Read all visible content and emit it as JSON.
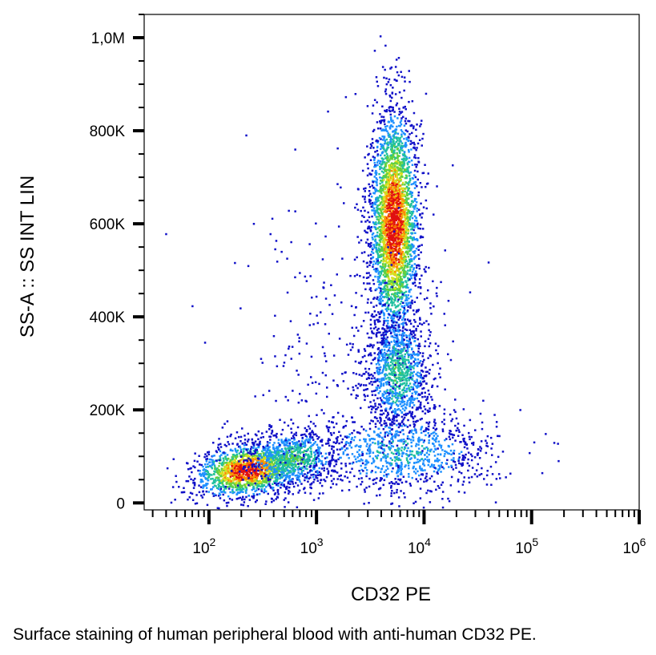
{
  "chart_data": {
    "type": "scatter",
    "subtype": "flow-cytometry density dot plot",
    "xlabel": "CD32 PE",
    "ylabel": "SS-A :: SS INT LIN",
    "x_scale": "log",
    "xlim": [
      25,
      1000000
    ],
    "ylim": [
      -15000,
      1050000
    ],
    "x_tick_labels": [
      {
        "value": 100,
        "base": "10",
        "exp": "2"
      },
      {
        "value": 1000,
        "base": "10",
        "exp": "3"
      },
      {
        "value": 10000,
        "base": "10",
        "exp": "4"
      },
      {
        "value": 100000,
        "base": "10",
        "exp": "5"
      },
      {
        "value": 1000000,
        "base": "10",
        "exp": "6"
      }
    ],
    "y_ticks": [
      {
        "value": 0,
        "label": "0"
      },
      {
        "value": 200000,
        "label": "200K"
      },
      {
        "value": 400000,
        "label": "400K"
      },
      {
        "value": 600000,
        "label": "600K"
      },
      {
        "value": 800000,
        "label": "800K"
      },
      {
        "value": 1000000,
        "label": "1,0M"
      }
    ],
    "colormap": [
      "#1010c8",
      "#1e90ff",
      "#20c0a0",
      "#60d040",
      "#d8e020",
      "#ff8c00",
      "#e01010"
    ],
    "grid": false,
    "populations": [
      {
        "x_center": 230,
        "y_center": 70000,
        "x_spread_log10": 0.24,
        "y_spread": 28000,
        "tilt_per_decade": 25000,
        "count": 1500,
        "peak_density": 1.0
      },
      {
        "x_center": 600,
        "y_center": 95000,
        "x_spread_log10": 0.22,
        "y_spread": 32000,
        "tilt_per_decade": 15000,
        "count": 700,
        "peak_density": 0.45
      },
      {
        "x_center": 5300,
        "y_center": 600000,
        "x_spread_log10": 0.11,
        "y_spread": 120000,
        "tilt_per_decade": 0,
        "count": 3000,
        "peak_density": 1.0
      },
      {
        "x_center": 5800,
        "y_center": 280000,
        "x_spread_log10": 0.15,
        "y_spread": 65000,
        "tilt_per_decade": 0,
        "count": 1000,
        "peak_density": 0.4
      },
      {
        "x_center": 6000,
        "y_center": 110000,
        "x_spread_log10": 0.45,
        "y_spread": 45000,
        "tilt_per_decade": 0,
        "count": 900,
        "peak_density": 0.3
      },
      {
        "x_center": 2000,
        "y_center": 300000,
        "x_spread_log10": 0.55,
        "y_spread": 200000,
        "tilt_per_decade": 0,
        "count": 350,
        "peak_density": 0.05
      }
    ]
  },
  "caption": "Surface staining of human peripheral blood with anti-human CD32 PE."
}
